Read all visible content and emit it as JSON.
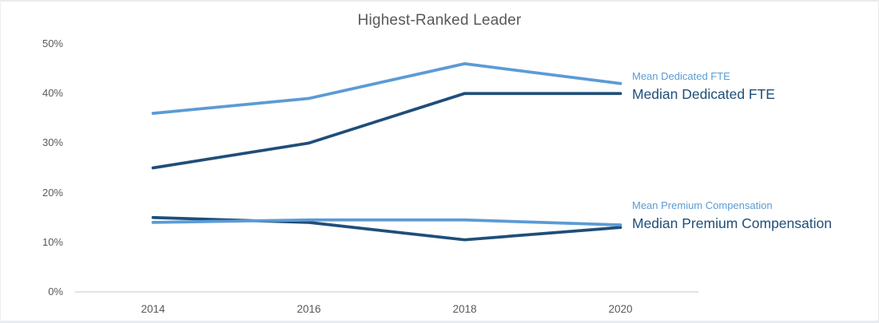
{
  "chart_data": {
    "type": "line",
    "title": "Highest-Ranked Leader",
    "categories": [
      "2014",
      "2016",
      "2018",
      "2020"
    ],
    "series": [
      {
        "name": "Mean Dedicated FTE",
        "values": [
          36,
          39,
          46,
          42
        ],
        "color": "#5B9BD5"
      },
      {
        "name": "Median Dedicated FTE",
        "values": [
          25,
          30,
          40,
          40
        ],
        "color": "#1F4E79"
      },
      {
        "name": "Mean Premium Compensation",
        "values": [
          14,
          14.5,
          14.5,
          13.5
        ],
        "color": "#5B9BD5"
      },
      {
        "name": "Median Premium Compensation",
        "values": [
          15,
          14,
          10.5,
          13
        ],
        "color": "#1F4E79"
      }
    ],
    "y_ticks": [
      {
        "label": "50%",
        "value": 50
      },
      {
        "label": "40%",
        "value": 40
      },
      {
        "label": "30%",
        "value": 30
      },
      {
        "label": "20%",
        "value": 20
      },
      {
        "label": "10%",
        "value": 10
      },
      {
        "label": "0%",
        "value": 0
      }
    ],
    "ylim": [
      0,
      50
    ],
    "grid": false,
    "legend_position": "inline-right",
    "colors": {
      "axis_line": "#D9D9D9",
      "tick_text": "#595959",
      "title_text": "#595959",
      "mean_series": "#5B9BD5",
      "median_series": "#1F4E79"
    }
  }
}
